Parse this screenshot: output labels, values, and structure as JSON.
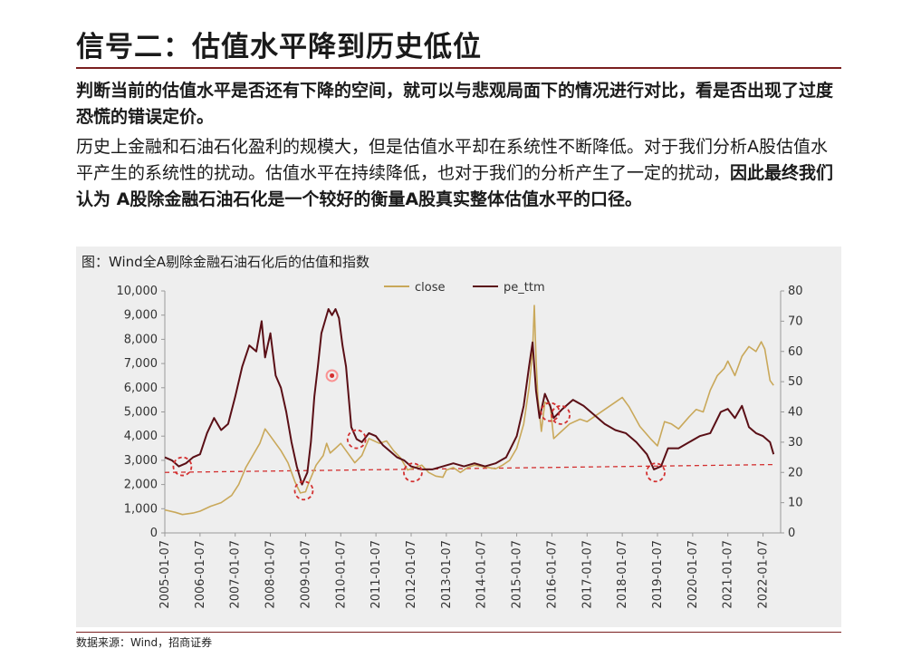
{
  "page": {
    "title": "信号二：估值水平降到历史低位",
    "lead": "判断当前的估值水平是否还有下降的空间，就可以与悲观局面下的情况进行对比，看是否出现了过度恐慌的错误定价。",
    "body_plain": "历史上金融和石油石化盈利的规模大，但是估值水平却在系统性不断降低。对于我们分析A股估值水平产生的系统性的扰动。估值水平在持续降低，也对于我们的分析产生了一定的扰动，",
    "body_bold": "因此最终我们认为 A股除金融石油石化是一个较好的衡量A股真实整体估值水平的口径。",
    "chart_caption": "图：Wind全A剔除金融石油石化后的估值和指数",
    "source": "数据来源：Wind，招商证券"
  },
  "colors": {
    "close": "#c9a85a",
    "pe_ttm": "#5a0f16",
    "trend": "#d33030",
    "marker": "#d33030",
    "rule": "#7a1f1f"
  },
  "chart_data": {
    "type": "line",
    "x_ticks": [
      "2005-01-07",
      "2006-01-07",
      "2007-01-07",
      "2008-01-07",
      "2009-01-07",
      "2010-01-07",
      "2011-01-07",
      "2012-01-07",
      "2013-01-07",
      "2014-01-07",
      "2015-01-07",
      "2016-01-07",
      "2017-01-07",
      "2018-01-07",
      "2019-01-07",
      "2020-01-07",
      "2021-01-07",
      "2022-01-07"
    ],
    "y_left": {
      "min": 0,
      "max": 10000,
      "ticks": [
        "0",
        "1,000",
        "2,000",
        "3,000",
        "4,000",
        "5,000",
        "6,000",
        "7,000",
        "8,000",
        "9,000",
        "10,000"
      ]
    },
    "y_right": {
      "min": 0,
      "max": 80,
      "ticks": [
        "0",
        "10",
        "20",
        "30",
        "40",
        "50",
        "60",
        "70",
        "80"
      ]
    },
    "legend": {
      "position": "top-center",
      "items": [
        "close",
        "pe_ttm"
      ]
    },
    "series": [
      {
        "name": "close",
        "axis": "left",
        "points": [
          [
            2005.0,
            950
          ],
          [
            2005.3,
            850
          ],
          [
            2005.5,
            760
          ],
          [
            2005.8,
            820
          ],
          [
            2006.0,
            900
          ],
          [
            2006.3,
            1100
          ],
          [
            2006.6,
            1250
          ],
          [
            2006.9,
            1550
          ],
          [
            2007.1,
            2000
          ],
          [
            2007.3,
            2700
          ],
          [
            2007.5,
            3200
          ],
          [
            2007.7,
            3700
          ],
          [
            2007.85,
            4300
          ],
          [
            2008.0,
            4000
          ],
          [
            2008.15,
            3700
          ],
          [
            2008.3,
            3400
          ],
          [
            2008.5,
            2900
          ],
          [
            2008.7,
            2100
          ],
          [
            2008.85,
            1650
          ],
          [
            2009.0,
            1700
          ],
          [
            2009.1,
            2100
          ],
          [
            2009.3,
            2800
          ],
          [
            2009.5,
            3200
          ],
          [
            2009.6,
            3700
          ],
          [
            2009.7,
            3300
          ],
          [
            2009.85,
            3500
          ],
          [
            2010.0,
            3700
          ],
          [
            2010.15,
            3400
          ],
          [
            2010.4,
            2900
          ],
          [
            2010.6,
            3200
          ],
          [
            2010.8,
            3900
          ],
          [
            2010.95,
            3800
          ],
          [
            2011.1,
            3700
          ],
          [
            2011.3,
            3800
          ],
          [
            2011.5,
            3400
          ],
          [
            2011.7,
            3100
          ],
          [
            2011.9,
            2600
          ],
          [
            2012.1,
            2700
          ],
          [
            2012.3,
            2800
          ],
          [
            2012.5,
            2500
          ],
          [
            2012.7,
            2350
          ],
          [
            2012.9,
            2300
          ],
          [
            2013.0,
            2600
          ],
          [
            2013.2,
            2700
          ],
          [
            2013.4,
            2500
          ],
          [
            2013.6,
            2700
          ],
          [
            2013.8,
            2800
          ],
          [
            2014.0,
            2750
          ],
          [
            2014.2,
            2700
          ],
          [
            2014.4,
            2650
          ],
          [
            2014.6,
            2800
          ],
          [
            2014.8,
            3000
          ],
          [
            2015.0,
            3500
          ],
          [
            2015.2,
            4500
          ],
          [
            2015.35,
            6000
          ],
          [
            2015.45,
            7500
          ],
          [
            2015.5,
            9400
          ],
          [
            2015.55,
            7200
          ],
          [
            2015.6,
            5600
          ],
          [
            2015.7,
            4200
          ],
          [
            2015.8,
            5400
          ],
          [
            2015.95,
            5300
          ],
          [
            2016.05,
            3900
          ],
          [
            2016.2,
            4100
          ],
          [
            2016.5,
            4500
          ],
          [
            2016.8,
            4700
          ],
          [
            2017.0,
            4600
          ],
          [
            2017.3,
            4900
          ],
          [
            2017.5,
            5100
          ],
          [
            2017.8,
            5400
          ],
          [
            2018.0,
            5600
          ],
          [
            2018.2,
            5200
          ],
          [
            2018.5,
            4400
          ],
          [
            2018.8,
            3900
          ],
          [
            2019.0,
            3600
          ],
          [
            2019.2,
            4600
          ],
          [
            2019.4,
            4500
          ],
          [
            2019.6,
            4300
          ],
          [
            2019.9,
            4800
          ],
          [
            2020.1,
            5100
          ],
          [
            2020.3,
            5000
          ],
          [
            2020.5,
            5900
          ],
          [
            2020.7,
            6500
          ],
          [
            2020.9,
            6800
          ],
          [
            2021.0,
            7100
          ],
          [
            2021.2,
            6500
          ],
          [
            2021.4,
            7300
          ],
          [
            2021.6,
            7700
          ],
          [
            2021.8,
            7500
          ],
          [
            2021.95,
            7900
          ],
          [
            2022.05,
            7600
          ],
          [
            2022.2,
            6300
          ],
          [
            2022.3,
            6100
          ]
        ]
      },
      {
        "name": "pe_ttm",
        "axis": "right",
        "points": [
          [
            2005.0,
            25
          ],
          [
            2005.2,
            24
          ],
          [
            2005.4,
            22
          ],
          [
            2005.6,
            23
          ],
          [
            2005.8,
            25
          ],
          [
            2006.0,
            26
          ],
          [
            2006.2,
            33
          ],
          [
            2006.4,
            38
          ],
          [
            2006.6,
            34
          ],
          [
            2006.8,
            36
          ],
          [
            2007.0,
            45
          ],
          [
            2007.2,
            55
          ],
          [
            2007.4,
            62
          ],
          [
            2007.6,
            60
          ],
          [
            2007.75,
            70
          ],
          [
            2007.85,
            58
          ],
          [
            2008.0,
            66
          ],
          [
            2008.15,
            52
          ],
          [
            2008.3,
            48
          ],
          [
            2008.45,
            40
          ],
          [
            2008.6,
            30
          ],
          [
            2008.75,
            22
          ],
          [
            2008.9,
            16
          ],
          [
            2009.05,
            20
          ],
          [
            2009.15,
            30
          ],
          [
            2009.25,
            45
          ],
          [
            2009.35,
            55
          ],
          [
            2009.45,
            66
          ],
          [
            2009.55,
            70
          ],
          [
            2009.65,
            74
          ],
          [
            2009.75,
            72
          ],
          [
            2009.85,
            74
          ],
          [
            2009.95,
            71
          ],
          [
            2010.05,
            62
          ],
          [
            2010.15,
            55
          ],
          [
            2010.3,
            35
          ],
          [
            2010.45,
            31
          ],
          [
            2010.6,
            30
          ],
          [
            2010.8,
            33
          ],
          [
            2011.0,
            32
          ],
          [
            2011.2,
            29
          ],
          [
            2011.4,
            27
          ],
          [
            2011.6,
            25
          ],
          [
            2011.8,
            24
          ],
          [
            2012.0,
            22
          ],
          [
            2012.3,
            21
          ],
          [
            2012.6,
            21
          ],
          [
            2012.9,
            22
          ],
          [
            2013.2,
            23
          ],
          [
            2013.5,
            22
          ],
          [
            2013.8,
            23
          ],
          [
            2014.1,
            22
          ],
          [
            2014.4,
            23
          ],
          [
            2014.7,
            25
          ],
          [
            2015.0,
            32
          ],
          [
            2015.2,
            42
          ],
          [
            2015.35,
            55
          ],
          [
            2015.45,
            63
          ],
          [
            2015.55,
            47
          ],
          [
            2015.65,
            38
          ],
          [
            2015.8,
            46
          ],
          [
            2015.95,
            42
          ],
          [
            2016.05,
            38
          ],
          [
            2016.3,
            41
          ],
          [
            2016.6,
            44
          ],
          [
            2016.9,
            42
          ],
          [
            2017.2,
            39
          ],
          [
            2017.5,
            36
          ],
          [
            2017.8,
            34
          ],
          [
            2018.1,
            33
          ],
          [
            2018.4,
            30
          ],
          [
            2018.7,
            26
          ],
          [
            2018.9,
            21
          ],
          [
            2019.1,
            22
          ],
          [
            2019.3,
            28
          ],
          [
            2019.6,
            28
          ],
          [
            2019.9,
            30
          ],
          [
            2020.2,
            32
          ],
          [
            2020.5,
            33
          ],
          [
            2020.8,
            40
          ],
          [
            2021.0,
            41
          ],
          [
            2021.2,
            38
          ],
          [
            2021.4,
            42
          ],
          [
            2021.6,
            35
          ],
          [
            2021.8,
            33
          ],
          [
            2022.0,
            32
          ],
          [
            2022.2,
            30
          ],
          [
            2022.3,
            26
          ]
        ]
      }
    ],
    "trend_line": {
      "start": [
        2005.0,
        20
      ],
      "end": [
        2022.3,
        22.6
      ],
      "axis": "right",
      "style": "dashed"
    },
    "highlight_markers": [
      [
        2005.5,
        22
      ],
      [
        2008.95,
        14
      ],
      [
        2010.45,
        31
      ],
      [
        2012.05,
        20
      ],
      [
        2015.95,
        40
      ],
      [
        2016.25,
        39
      ],
      [
        2018.95,
        20
      ]
    ],
    "annotation_dot": [
      2009.75,
      52
    ]
  }
}
